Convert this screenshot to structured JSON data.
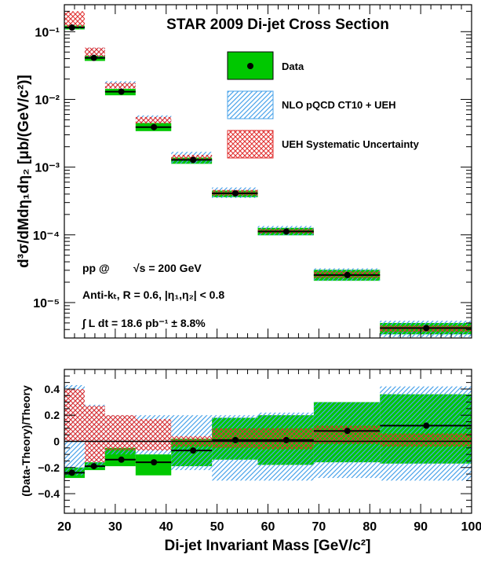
{
  "chart_data": {
    "type": "bar",
    "title": "STAR 2009 Di-jet Cross Section",
    "xlabel": "Di-jet Invariant Mass [GeV/c²]",
    "upper": {
      "ylabel": "d³σ/dMdη₁dη₂ [μb/(GeV/c²)]",
      "yscale": "log",
      "ylim": [
        3e-06,
        0.25
      ],
      "yticks": [
        {
          "v": 1e-05,
          "label": "10⁻⁵"
        },
        {
          "v": 0.0001,
          "label": "10⁻⁴"
        },
        {
          "v": 0.001,
          "label": "10⁻³"
        },
        {
          "v": 0.01,
          "label": "10⁻²"
        },
        {
          "v": 0.1,
          "label": "10⁻¹"
        }
      ]
    },
    "lower": {
      "ylabel": "(Data-Theory)/Theory",
      "ylim": [
        -0.55,
        0.55
      ],
      "yticks": [
        {
          "v": -0.4,
          "label": "−0.4"
        },
        {
          "v": -0.2,
          "label": "−0.2"
        },
        {
          "v": 0,
          "label": "0"
        },
        {
          "v": 0.2,
          "label": "0.2"
        },
        {
          "v": 0.4,
          "label": "0.4"
        }
      ]
    },
    "xlim": [
      20,
      100
    ],
    "xticks": [
      20,
      30,
      40,
      50,
      60,
      70,
      80,
      90,
      100
    ],
    "legend": {
      "placement": "top-right",
      "entries": [
        {
          "label": "Data",
          "style": "data"
        },
        {
          "label": "NLO pQCD CT10 + UEH",
          "style": "hatch"
        },
        {
          "label": "UEH Systematic Uncertainty",
          "style": "cross"
        }
      ]
    },
    "annotations": {
      "line1_a": "pp @",
      "line1_b": "√s = 200 GeV",
      "line2": "Anti-kₜ, R = 0.6,  |η₁,η₂| < 0.8",
      "line3": "∫ L dt  = 18.6 pb⁻¹ ± 8.8%"
    },
    "bins": [
      {
        "lo": 20.0,
        "hi": 24.0,
        "x": 21.5,
        "y": 0.115,
        "green": [
          0.108,
          0.123
        ],
        "blue": [
          0.11,
          0.125
        ],
        "red": [
          0.118,
          0.2
        ],
        "ratio": -0.24,
        "rgreen": [
          -0.28,
          -0.2
        ],
        "rblue": [
          -0.26,
          0.43
        ],
        "rred": [
          0,
          0.4
        ]
      },
      {
        "lo": 24.0,
        "hi": 28.0,
        "x": 25.8,
        "y": 0.041,
        "green": [
          0.037,
          0.044
        ],
        "blue": [
          0.042,
          0.058
        ],
        "red": [
          0.043,
          0.058
        ],
        "ratio": -0.19,
        "rgreen": [
          -0.22,
          -0.16
        ],
        "rblue": [
          -0.2,
          0.28
        ],
        "rred": [
          -0.16,
          0.27
        ]
      },
      {
        "lo": 28.0,
        "hi": 34.0,
        "x": 31.2,
        "y": 0.013,
        "green": [
          0.0115,
          0.0143
        ],
        "blue": [
          0.0145,
          0.0185
        ],
        "red": [
          0.0145,
          0.0175
        ],
        "ratio": -0.14,
        "rgreen": [
          -0.19,
          -0.05
        ],
        "rblue": [
          -0.1,
          0.2
        ],
        "rred": [
          -0.07,
          0.2
        ]
      },
      {
        "lo": 34.0,
        "hi": 41.0,
        "x": 37.6,
        "y": 0.0039,
        "green": [
          0.0034,
          0.0045
        ],
        "blue": [
          0.0044,
          0.0058
        ],
        "red": [
          0.0044,
          0.0055
        ],
        "ratio": -0.16,
        "rgreen": [
          -0.26,
          -0.1
        ],
        "rblue": [
          -0.1,
          0.2
        ],
        "rred": [
          -0.07,
          0.17
        ]
      },
      {
        "lo": 41.0,
        "hi": 49.0,
        "x": 45.3,
        "y": 0.00128,
        "green": [
          0.00112,
          0.00138
        ],
        "blue": [
          0.00113,
          0.00168
        ],
        "red": [
          0.00125,
          0.00152
        ],
        "ratio": -0.07,
        "rgreen": [
          -0.19,
          0.02
        ],
        "rblue": [
          -0.22,
          0.2
        ],
        "rred": [
          -0.04,
          0.04
        ]
      },
      {
        "lo": 49.0,
        "hi": 58.0,
        "x": 53.6,
        "y": 0.00041,
        "green": [
          0.00036,
          0.00045
        ],
        "blue": [
          0.00035,
          0.0005
        ],
        "red": [
          0.00038,
          0.00046
        ],
        "ratio": 0.01,
        "rgreen": [
          -0.14,
          0.18
        ],
        "rblue": [
          -0.3,
          0.2
        ],
        "rred": [
          -0.05,
          0.1
        ]
      },
      {
        "lo": 58.0,
        "hi": 69.0,
        "x": 63.6,
        "y": 0.000112,
        "green": [
          9.85e-05,
          0.000127
        ],
        "blue": [
          9.8e-05,
          0.000135
        ],
        "red": [
          0.000105,
          0.000122
        ],
        "ratio": 0.01,
        "rgreen": [
          -0.18,
          0.2
        ],
        "rblue": [
          -0.3,
          0.22
        ],
        "rred": [
          -0.06,
          0.1
        ]
      },
      {
        "lo": 69.0,
        "hi": 82.0,
        "x": 75.6,
        "y": 2.55e-05,
        "green": [
          2.1e-05,
          3.05e-05
        ],
        "blue": [
          2.1e-05,
          3.2e-05
        ],
        "red": [
          2.3e-05,
          2.9e-05
        ],
        "ratio": 0.08,
        "rgreen": [
          -0.16,
          0.3
        ],
        "rblue": [
          -0.28,
          0.3
        ],
        "rred": [
          -0.02,
          0.12
        ]
      },
      {
        "lo": 82.0,
        "hi": 100.0,
        "x": 91.1,
        "y": 4.2e-06,
        "green": [
          3.4e-06,
          5e-06
        ],
        "blue": [
          3.1e-06,
          5.4e-06
        ],
        "red": [
          3.7e-06,
          4.6e-06
        ],
        "ratio": 0.12,
        "rgreen": [
          -0.17,
          0.36
        ],
        "rblue": [
          -0.3,
          0.42
        ],
        "rred": [
          -0.04,
          0.06
        ]
      }
    ]
  }
}
